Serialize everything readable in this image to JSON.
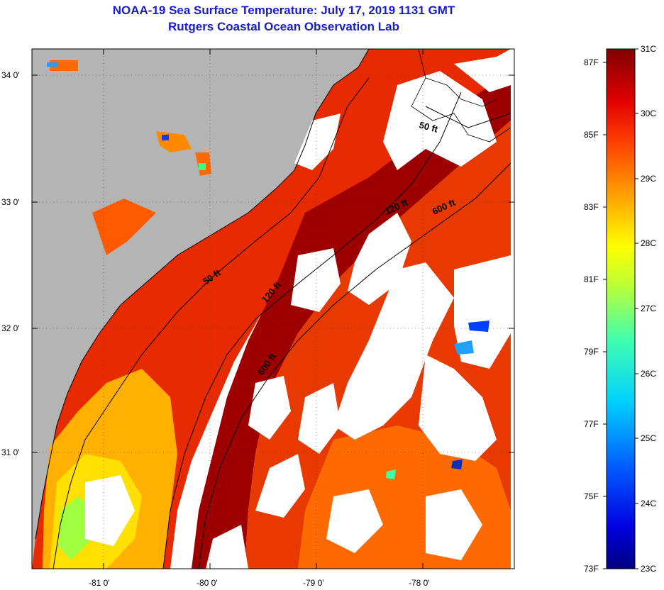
{
  "header": {
    "title": "NOAA-19 Sea Surface Temperature:  July 17, 2019 1131 GMT",
    "subtitle": "Rutgers Coastal Ocean Observation Lab"
  },
  "map": {
    "lat_labels": [
      "34 0'",
      "33 0'",
      "32 0'",
      "31 0'"
    ],
    "lon_labels": [
      "-81 0'",
      "-80 0'",
      "-79 0'",
      "-78 0'"
    ],
    "isobath_labels": [
      "50 ft",
      "120 ft",
      "600 ft",
      "50 ft",
      "120 ft",
      "600 ft"
    ],
    "colors": {
      "land": "#b4b4b4",
      "cloud": "#ffffff",
      "outside_map": "#ffffff"
    }
  },
  "colorbar": {
    "celsius_labels": [
      "31C",
      "30C",
      "29C",
      "28C",
      "27C",
      "26C",
      "25C",
      "24C",
      "23C"
    ],
    "fahrenheit_labels": [
      "87F",
      "85F",
      "83F",
      "81F",
      "79F",
      "77F",
      "75F",
      "73F"
    ],
    "scale_c": [
      23,
      31
    ],
    "scale_f": [
      73,
      87
    ]
  }
}
